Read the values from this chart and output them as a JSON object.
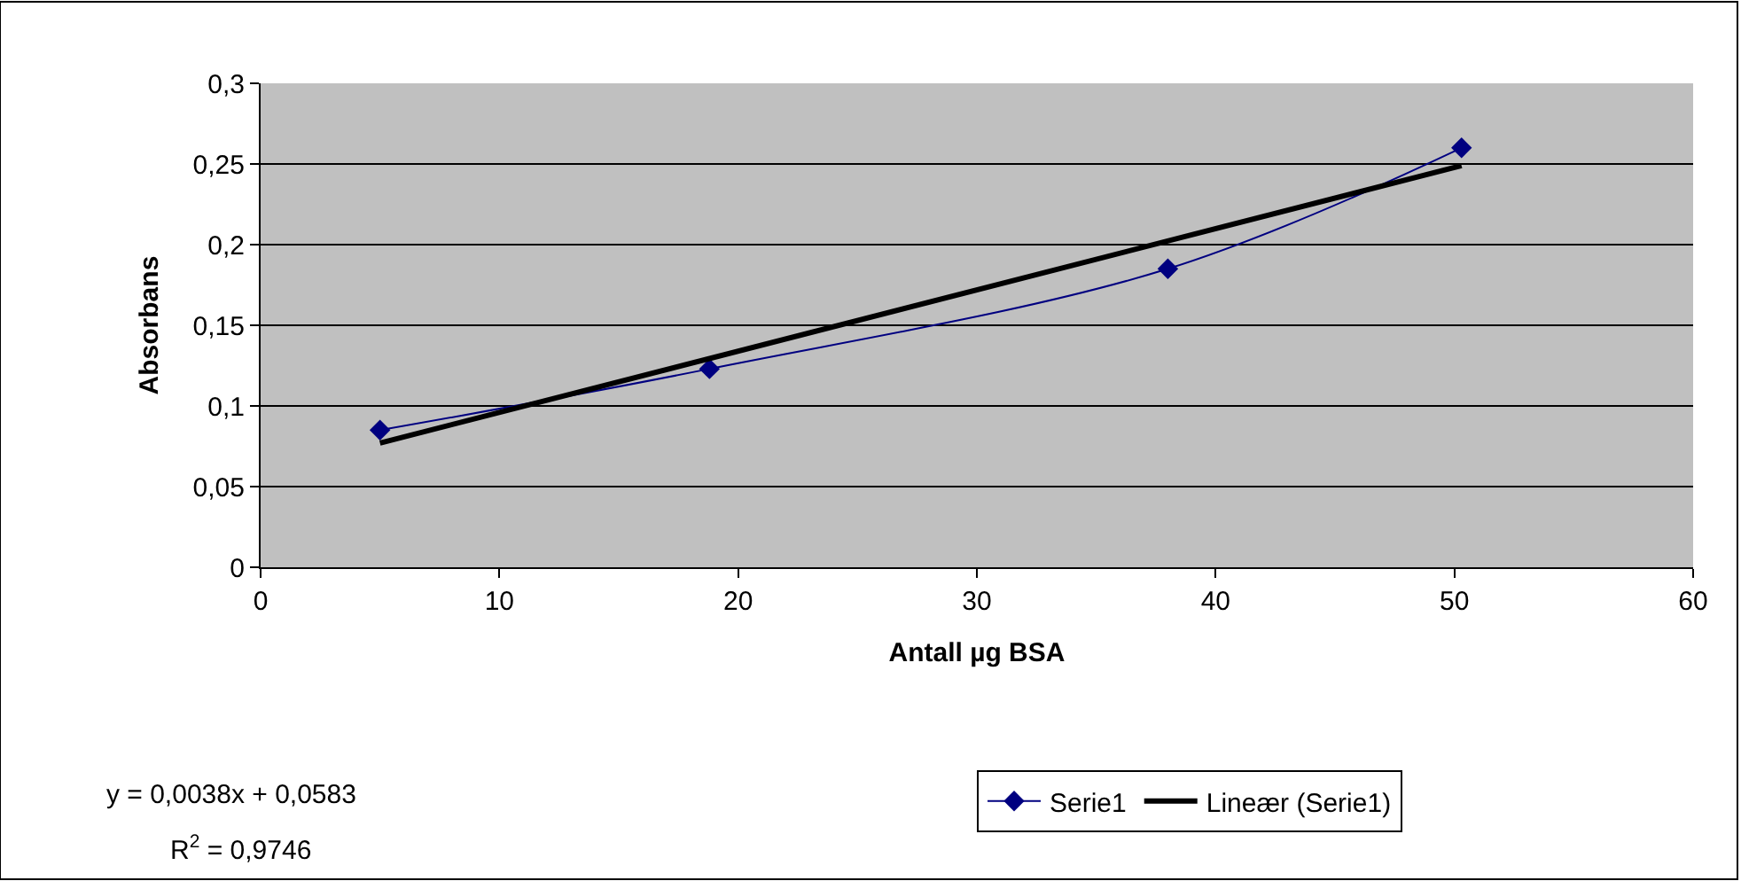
{
  "chart_data": {
    "type": "line",
    "xlabel": "Antall µg BSA",
    "ylabel": "Absorbans",
    "series": [
      {
        "name": "Serie1",
        "color": "#000080",
        "x": [
          5,
          18.8,
          38,
          50.3
        ],
        "values": [
          0.085,
          0.123,
          0.185,
          0.26
        ],
        "marker": "diamond"
      },
      {
        "name": "Lineær (Serie1)",
        "color": "#000000",
        "x": [
          5,
          50.3
        ],
        "values": [
          0.077,
          0.249
        ],
        "marker": "none"
      }
    ],
    "xlim": [
      0,
      60
    ],
    "xticks": [
      0,
      10,
      20,
      30,
      40,
      50,
      60
    ],
    "ylim": [
      0,
      0.3
    ],
    "yticks": [
      {
        "value": 0,
        "label": "0"
      },
      {
        "value": 0.05,
        "label": "0,05"
      },
      {
        "value": 0.1,
        "label": "0,1"
      },
      {
        "value": 0.15,
        "label": "0,15"
      },
      {
        "value": 0.2,
        "label": "0,2"
      },
      {
        "value": 0.25,
        "label": "0,25"
      },
      {
        "value": 0.3,
        "label": "0,3"
      }
    ],
    "grid": "y",
    "legend": "bottom",
    "annotations": [
      "y = 0,0038x + 0,0583",
      "R$^{2}$ = 0,9746"
    ]
  }
}
